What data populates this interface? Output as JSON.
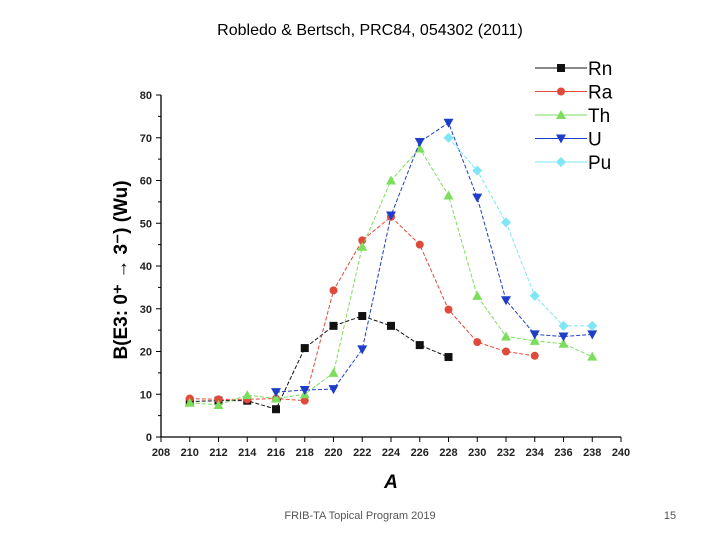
{
  "slide": {
    "title": "Robledo & Bertsch, PRC84, 054302 (2011)",
    "footer": "FRIB-TA Topical Program 2019",
    "page_number": "15"
  },
  "chart_data": {
    "type": "line",
    "title": "",
    "xlabel": "A",
    "ylabel": "B(E3: 0⁺ → 3⁻) (Wu)",
    "xlim": [
      208,
      240
    ],
    "ylim": [
      0,
      80
    ],
    "x_ticks": [
      208,
      210,
      212,
      214,
      216,
      218,
      220,
      222,
      224,
      226,
      228,
      230,
      232,
      234,
      236,
      238,
      240
    ],
    "y_ticks": [
      0,
      10,
      20,
      30,
      40,
      50,
      60,
      70,
      80
    ],
    "legend_position": "top-right",
    "grid": false,
    "series": [
      {
        "name": "Rn",
        "color": "#111111",
        "marker": "square",
        "x": [
          210,
          212,
          214,
          216,
          218,
          220,
          222,
          224,
          226,
          228
        ],
        "y": [
          8.3,
          8.5,
          8.5,
          6.5,
          20.8,
          26.0,
          28.3,
          26.0,
          21.5,
          18.7
        ]
      },
      {
        "name": "Ra",
        "color": "#e04a3a",
        "marker": "circle",
        "x": [
          210,
          212,
          214,
          216,
          218,
          220,
          222,
          224,
          226,
          228,
          230,
          232,
          234
        ],
        "y": [
          9.0,
          8.8,
          8.8,
          9.0,
          8.5,
          34.3,
          46.0,
          51.5,
          45.0,
          29.8,
          22.2,
          20.0,
          19.0
        ]
      },
      {
        "name": "Th",
        "color": "#7cde5c",
        "marker": "triangle-up",
        "x": [
          210,
          212,
          214,
          216,
          218,
          220,
          222,
          224,
          226,
          228,
          230,
          232,
          234,
          236,
          238
        ],
        "y": [
          8.0,
          7.5,
          9.8,
          9.0,
          10.0,
          15.0,
          44.5,
          60.0,
          67.5,
          56.5,
          33.0,
          23.5,
          22.5,
          21.8,
          18.8
        ]
      },
      {
        "name": "U",
        "color": "#1f3ec8",
        "marker": "triangle-down",
        "x": [
          216,
          218,
          220,
          222,
          224,
          226,
          228,
          230,
          232,
          234,
          236,
          238
        ],
        "y": [
          10.5,
          11.0,
          11.2,
          20.5,
          51.8,
          69.0,
          73.5,
          56.0,
          32.0,
          24.0,
          23.5,
          24.0
        ]
      },
      {
        "name": "Pu",
        "color": "#7fe6f7",
        "marker": "diamond",
        "x": [
          228,
          230,
          232,
          234,
          236,
          238
        ],
        "y": [
          70.0,
          62.3,
          50.2,
          33.0,
          26.0,
          26.0
        ]
      }
    ]
  }
}
